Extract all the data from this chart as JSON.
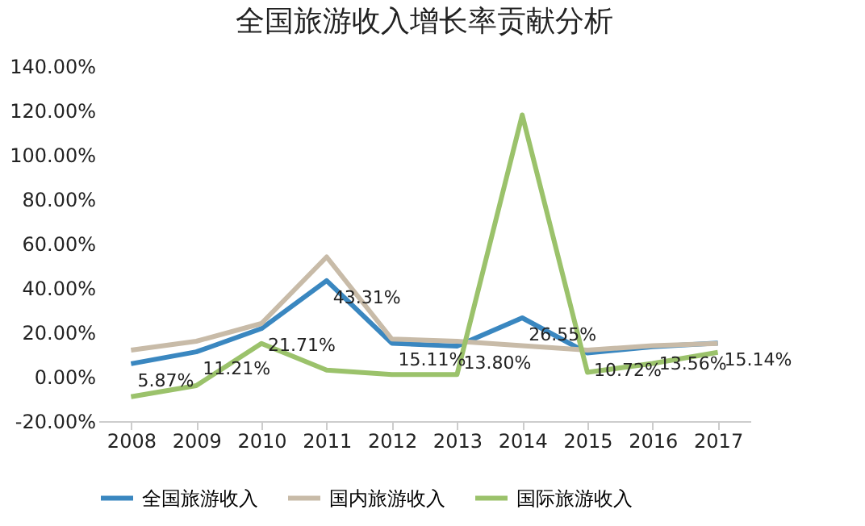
{
  "chart_data": {
    "type": "line",
    "title": "全国旅游收入增长率贡献分析",
    "categories": [
      "2008",
      "2009",
      "2010",
      "2011",
      "2012",
      "2013",
      "2014",
      "2015",
      "2016",
      "2017"
    ],
    "series": [
      {
        "name": "全国旅游收入",
        "color": "#3a87c0",
        "values": [
          5.87,
          11.21,
          21.71,
          43.31,
          15.11,
          13.8,
          26.55,
          10.72,
          13.56,
          15.14
        ],
        "value_labels": [
          "5.87%",
          "11.21%",
          "21.71%",
          "43.31%",
          "15.11%",
          "13.80%",
          "26.55%",
          "10.72%",
          "13.56%",
          "15.14%"
        ]
      },
      {
        "name": "国内旅游收入",
        "color": "#c8bba8",
        "values": [
          12,
          16,
          24,
          54,
          17,
          16,
          14,
          12,
          14,
          15
        ]
      },
      {
        "name": "国际旅游收入",
        "color": "#9bc26b",
        "values": [
          -9,
          -4,
          15,
          3,
          1,
          1,
          118,
          2,
          6,
          11
        ]
      }
    ],
    "ylim": [
      -20,
      140
    ],
    "yticks": [
      {
        "value": -20,
        "label": "-20.00%"
      },
      {
        "value": 0,
        "label": "0.00%"
      },
      {
        "value": 20,
        "label": "20.00%"
      },
      {
        "value": 40,
        "label": "40.00%"
      },
      {
        "value": 60,
        "label": "60.00%"
      },
      {
        "value": 80,
        "label": "80.00%"
      },
      {
        "value": 100,
        "label": "100.00%"
      },
      {
        "value": 120,
        "label": "120.00%"
      },
      {
        "value": 140,
        "label": "140.00%"
      }
    ],
    "legend": "bottom",
    "grid": false,
    "marker": "none",
    "line_style": "solid"
  }
}
